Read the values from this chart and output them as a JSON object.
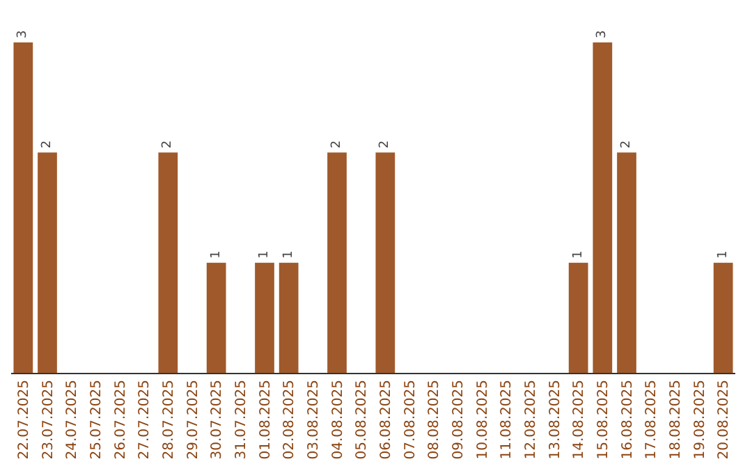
{
  "chart_data": {
    "type": "bar",
    "categories": [
      "22.07.2025",
      "23.07.2025",
      "24.07.2025",
      "25.07.2025",
      "26.07.2025",
      "27.07.2025",
      "28.07.2025",
      "29.07.2025",
      "30.07.2025",
      "31.07.2025",
      "01.08.2025",
      "02.08.2025",
      "03.08.2025",
      "04.08.2025",
      "05.08.2025",
      "06.08.2025",
      "07.08.2025",
      "08.08.2025",
      "09.08.2025",
      "10.08.2025",
      "11.08.2025",
      "12.08.2025",
      "13.08.2025",
      "14.08.2025",
      "15.08.2025",
      "16.08.2025",
      "17.08.2025",
      "18.08.2025",
      "19.08.2025",
      "20.08.2025"
    ],
    "values": [
      3,
      2,
      0,
      0,
      0,
      0,
      2,
      0,
      1,
      0,
      1,
      1,
      0,
      2,
      0,
      2,
      0,
      0,
      0,
      0,
      0,
      0,
      0,
      1,
      3,
      2,
      0,
      0,
      0,
      1
    ],
    "value_labels": [
      "3",
      "2",
      null,
      null,
      null,
      null,
      "2",
      null,
      "1",
      null,
      "1",
      "1",
      null,
      "2",
      null,
      "2",
      null,
      null,
      null,
      null,
      null,
      null,
      null,
      "1",
      "3",
      "2",
      null,
      null,
      null,
      "1"
    ],
    "color": "#a0592a"
  }
}
